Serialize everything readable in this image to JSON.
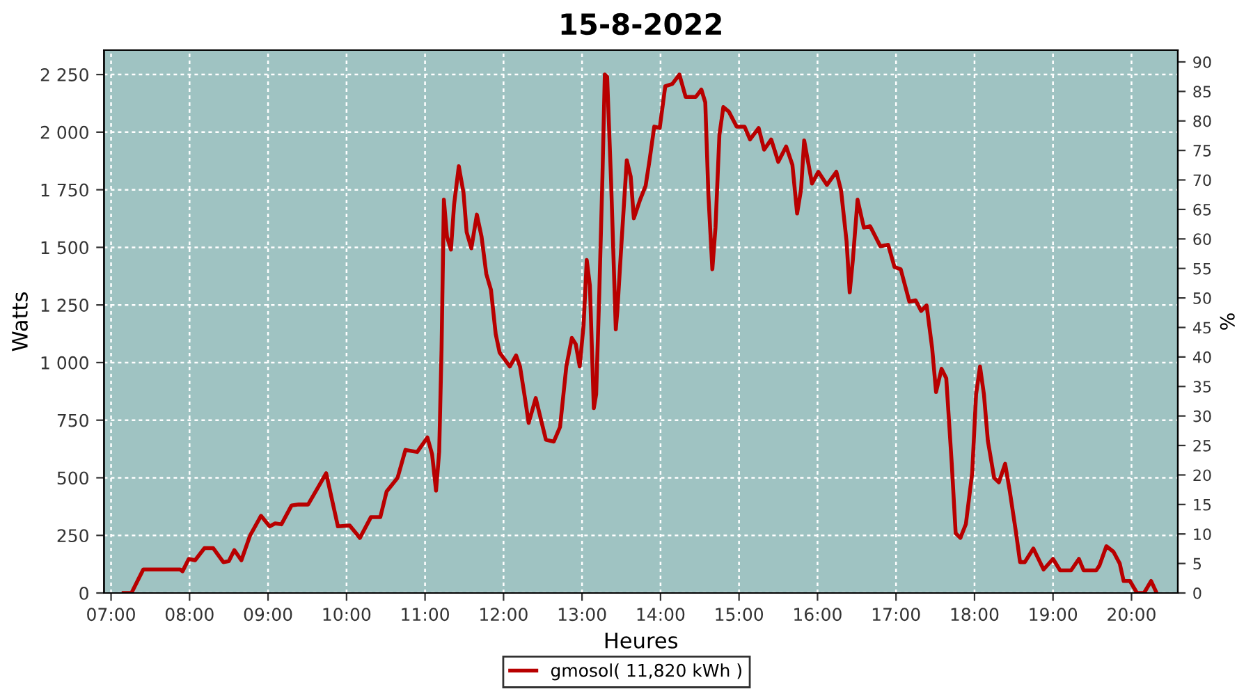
{
  "chart_data": {
    "type": "line",
    "title": "15-8-2022",
    "xlabel": "Heures",
    "ylabel": "Watts",
    "y2label": "%",
    "series": [
      {
        "name": "gmosol( 11,820 kWh )",
        "color": "#b80000",
        "x": [
          7.16,
          7.26,
          7.41,
          7.88,
          7.91,
          7.99,
          8.07,
          8.19,
          8.3,
          8.43,
          8.5,
          8.57,
          8.66,
          8.77,
          8.91,
          9.02,
          9.09,
          9.17,
          9.3,
          9.39,
          9.51,
          9.64,
          9.74,
          9.89,
          10.04,
          10.17,
          10.31,
          10.43,
          10.51,
          10.65,
          10.75,
          10.9,
          11.03,
          11.09,
          11.14,
          11.18,
          11.21,
          11.24,
          11.28,
          11.33,
          11.37,
          11.43,
          11.49,
          11.53,
          11.59,
          11.66,
          11.72,
          11.78,
          11.84,
          11.9,
          11.95,
          12.08,
          12.16,
          12.21,
          12.27,
          12.32,
          12.41,
          12.47,
          12.54,
          12.64,
          12.72,
          12.8,
          12.87,
          12.92,
          12.97,
          13.02,
          13.06,
          13.1,
          13.15,
          13.18,
          13.22,
          13.26,
          13.29,
          13.32,
          13.37,
          13.43,
          13.45,
          13.5,
          13.57,
          13.62,
          13.66,
          13.74,
          13.81,
          13.86,
          13.92,
          13.99,
          14.06,
          14.15,
          14.24,
          14.32,
          14.45,
          14.52,
          14.57,
          14.61,
          14.66,
          14.7,
          14.75,
          14.8,
          14.87,
          14.97,
          15.07,
          15.14,
          15.25,
          15.32,
          15.41,
          15.5,
          15.6,
          15.68,
          15.74,
          15.79,
          15.83,
          15.93,
          16.01,
          16.12,
          16.24,
          16.3,
          16.37,
          16.41,
          16.45,
          16.51,
          16.59,
          16.67,
          16.8,
          16.9,
          16.98,
          17.06,
          17.17,
          17.25,
          17.32,
          17.39,
          17.46,
          17.51,
          17.58,
          17.64,
          17.71,
          17.76,
          17.82,
          17.89,
          17.97,
          18.02,
          18.07,
          18.12,
          18.17,
          18.25,
          18.31,
          18.39,
          18.45,
          18.53,
          18.58,
          18.64,
          18.75,
          18.88,
          19.0,
          19.09,
          19.23,
          19.33,
          19.39,
          19.55,
          19.59,
          19.68,
          19.77,
          19.85,
          19.9,
          19.98,
          20.07,
          20.16,
          20.25,
          20.32
        ],
        "values": [
          0,
          0,
          102,
          102,
          94,
          148,
          142,
          195,
          195,
          134,
          138,
          186,
          142,
          249,
          335,
          289,
          302,
          298,
          380,
          384,
          384,
          460,
          520,
          289,
          293,
          239,
          329,
          329,
          440,
          500,
          621,
          612,
          675,
          602,
          444,
          612,
          1053,
          1707,
          1546,
          1490,
          1686,
          1852,
          1737,
          1566,
          1496,
          1642,
          1546,
          1385,
          1315,
          1124,
          1043,
          983,
          1031,
          983,
          852,
          738,
          846,
          762,
          665,
          657,
          721,
          983,
          1107,
          1080,
          983,
          1164,
          1445,
          1335,
          802,
          862,
          1305,
          1807,
          2250,
          2240,
          1787,
          1144,
          1224,
          1505,
          1878,
          1807,
          1626,
          1707,
          1767,
          1878,
          2024,
          2018,
          2199,
          2209,
          2250,
          2153,
          2153,
          2185,
          2129,
          1727,
          1405,
          1586,
          1988,
          2109,
          2089,
          2024,
          2024,
          1968,
          2018,
          1924,
          1968,
          1871,
          1938,
          1858,
          1647,
          1751,
          1964,
          1777,
          1828,
          1771,
          1828,
          1747,
          1526,
          1305,
          1445,
          1707,
          1586,
          1592,
          1505,
          1511,
          1415,
          1405,
          1264,
          1270,
          1224,
          1248,
          1063,
          872,
          973,
          932,
          561,
          259,
          239,
          299,
          520,
          862,
          983,
          862,
          661,
          500,
          480,
          561,
          440,
          259,
          134,
          134,
          193,
          102,
          148,
          98,
          98,
          148,
          98,
          98,
          118,
          203,
          179,
          128,
          52,
          52,
          0,
          0,
          52,
          0
        ]
      }
    ],
    "xlim": [
      6.91,
      20.59
    ],
    "xticks": [
      {
        "value": 7,
        "label": "07:00"
      },
      {
        "value": 8,
        "label": "08:00"
      },
      {
        "value": 9,
        "label": "09:00"
      },
      {
        "value": 10,
        "label": "10:00"
      },
      {
        "value": 11,
        "label": "11:00"
      },
      {
        "value": 12,
        "label": "12:00"
      },
      {
        "value": 13,
        "label": "13:00"
      },
      {
        "value": 14,
        "label": "14:00"
      },
      {
        "value": 15,
        "label": "15:00"
      },
      {
        "value": 16,
        "label": "16:00"
      },
      {
        "value": 17,
        "label": "17:00"
      },
      {
        "value": 18,
        "label": "18:00"
      },
      {
        "value": 19,
        "label": "19:00"
      },
      {
        "value": 20,
        "label": "20:00"
      }
    ],
    "ylim": [
      0,
      2356
    ],
    "yticks": [
      0,
      250,
      500,
      750,
      {
        "value": 1000,
        "label": "1 000"
      },
      {
        "value": 1250,
        "label": "1 250"
      },
      {
        "value": 1500,
        "label": "1 500"
      },
      {
        "value": 1750,
        "label": "1 750"
      },
      {
        "value": 2000,
        "label": "2 000"
      },
      {
        "value": 2250,
        "label": "2 250"
      }
    ],
    "y2lim": [
      0,
      92
    ],
    "y2ticks": [
      0,
      5,
      10,
      15,
      20,
      25,
      30,
      35,
      40,
      45,
      50,
      55,
      60,
      65,
      70,
      75,
      80,
      85,
      90
    ],
    "grid": true,
    "legend": "bottom",
    "marker": "none",
    "line_style": "solid"
  }
}
